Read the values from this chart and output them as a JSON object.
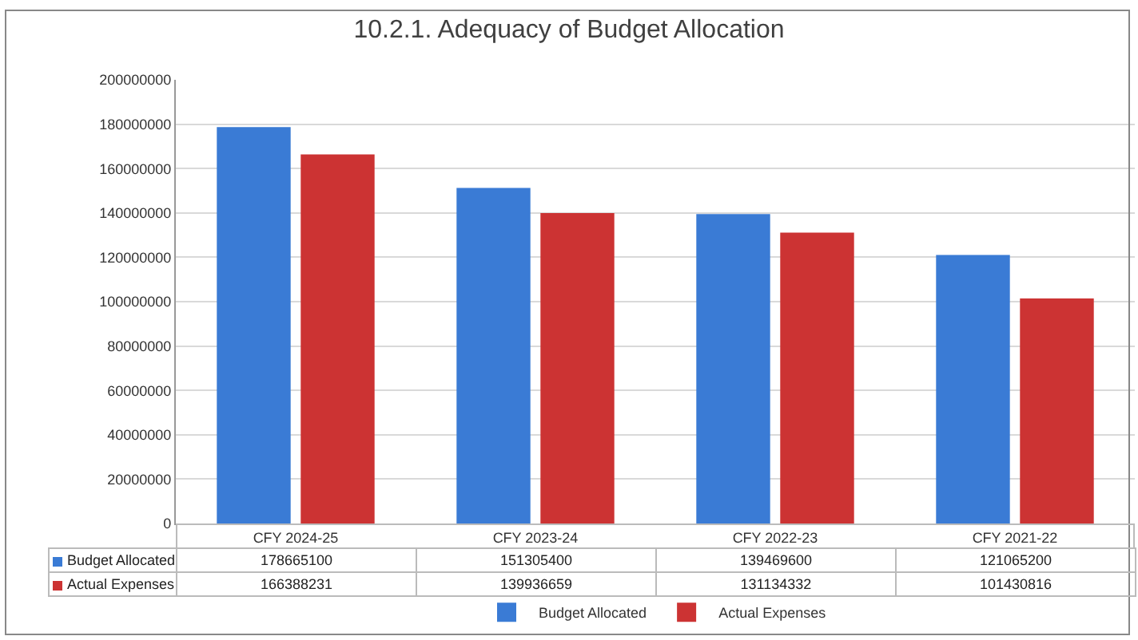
{
  "chart_data": {
    "type": "bar",
    "title": "10.2.1. Adequacy of Budget Allocation",
    "categories": [
      "CFY 2024-25",
      "CFY 2023-24",
      "CFY 2022-23",
      "CFY 2021-22"
    ],
    "series": [
      {
        "name": "Budget Allocated",
        "color": "#3a7bd5",
        "values": [
          178665100,
          151305400,
          139469600,
          121065200
        ]
      },
      {
        "name": "Actual Expenses",
        "color": "#cc3333",
        "values": [
          166388231,
          139936659,
          131134332,
          101430816
        ]
      }
    ],
    "ylim": [
      0,
      200000000
    ],
    "yticks": [
      0,
      20000000,
      40000000,
      60000000,
      80000000,
      100000000,
      120000000,
      140000000,
      160000000,
      180000000,
      200000000
    ],
    "grid": "y",
    "legend": "bottom",
    "data_labels": true
  }
}
